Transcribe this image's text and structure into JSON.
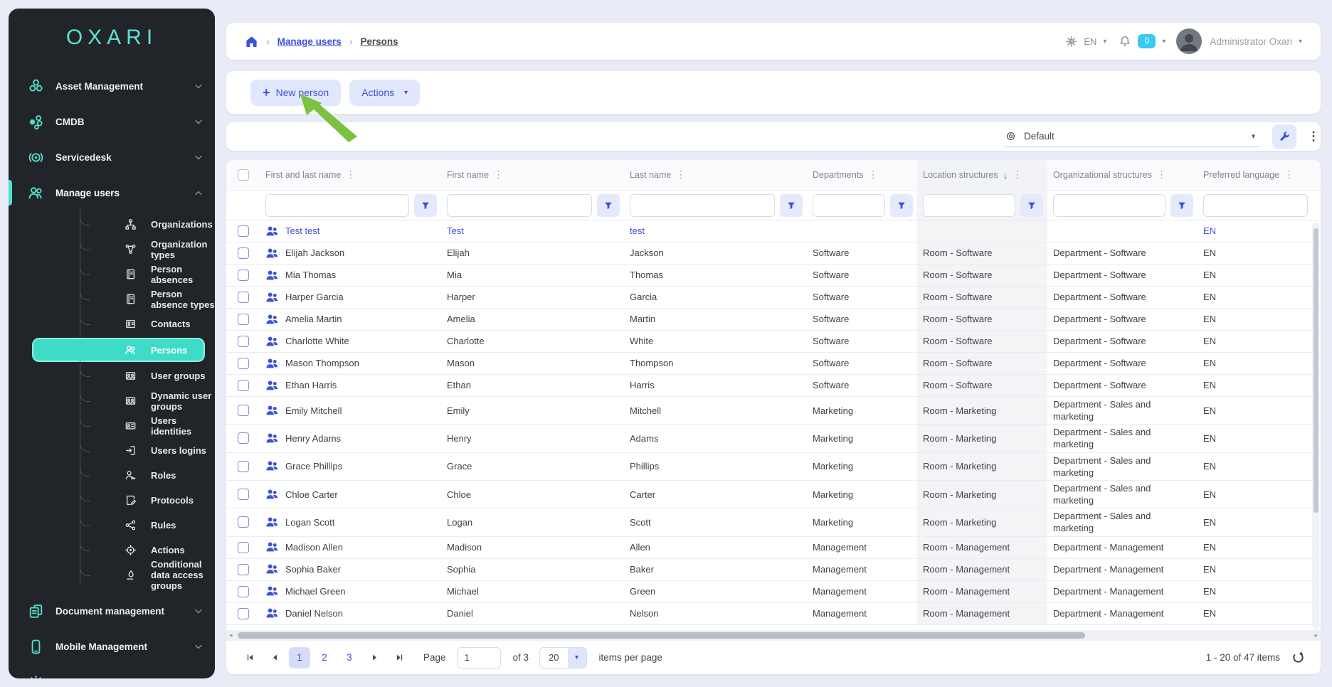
{
  "app": {
    "logo": "OXARI"
  },
  "colors": {
    "accent_teal": "#54e0cf",
    "accent_blue": "#3d50d8",
    "badge_cyan": "#3cc9f1",
    "sidebar_bg": "#212529"
  },
  "sidebar": {
    "items": [
      {
        "id": "asset-management",
        "label": "Asset Management",
        "icon": "hexagons",
        "chevron": "down"
      },
      {
        "id": "cmdb",
        "label": "CMDB",
        "icon": "cmdb",
        "chevron": "down"
      },
      {
        "id": "servicedesk",
        "label": "Servicedesk",
        "icon": "servicedesk",
        "chevron": "down"
      },
      {
        "id": "manage-users",
        "label": "Manage users",
        "icon": "people",
        "chevron": "up",
        "active": true,
        "children": [
          {
            "id": "organizations",
            "label": "Organizations",
            "icon": "sitemap"
          },
          {
            "id": "organization-types",
            "label": "Organization types",
            "icon": "nodes"
          },
          {
            "id": "person-absences",
            "label": "Person absences",
            "icon": "notebook"
          },
          {
            "id": "person-absence-types",
            "label": "Person absence types",
            "icon": "notebook"
          },
          {
            "id": "contacts",
            "label": "Contacts",
            "icon": "contact-card"
          },
          {
            "id": "persons",
            "label": "Persons",
            "icon": "people-sm",
            "selected": true
          },
          {
            "id": "user-groups",
            "label": "User groups",
            "icon": "group"
          },
          {
            "id": "dynamic-user-groups",
            "label": "Dynamic user groups",
            "icon": "group"
          },
          {
            "id": "users-identities",
            "label": "Users identities",
            "icon": "id-card"
          },
          {
            "id": "users-logins",
            "label": "Users logins",
            "icon": "login"
          },
          {
            "id": "roles",
            "label": "Roles",
            "icon": "person-key"
          },
          {
            "id": "protocols",
            "label": "Protocols",
            "icon": "document-pen"
          },
          {
            "id": "rules",
            "label": "Rules",
            "icon": "share-nodes"
          },
          {
            "id": "actions",
            "label": "Actions",
            "icon": "target"
          },
          {
            "id": "conditional-data-access-groups",
            "label": "Conditional data access groups",
            "icon": "hand"
          }
        ]
      },
      {
        "id": "document-management",
        "label": "Document management",
        "icon": "documents",
        "chevron": "down"
      },
      {
        "id": "mobile-management",
        "label": "Mobile Management",
        "icon": "phone",
        "chevron": "down"
      },
      {
        "id": "settings",
        "label": "Settings",
        "icon": "gear",
        "chevron": "down"
      }
    ]
  },
  "breadcrumb": {
    "items": [
      {
        "label": "Manage users"
      },
      {
        "label": "Persons"
      }
    ]
  },
  "header_right": {
    "language": "EN",
    "notification_count": "0",
    "user_name": "Administrator Oxari"
  },
  "toolbar": {
    "new_person_label": "New person",
    "actions_label": "Actions"
  },
  "view_bar": {
    "selected_view": "Default"
  },
  "table": {
    "columns": [
      {
        "label": "First and last name",
        "filter_button": true
      },
      {
        "label": "First name",
        "filter_button": true
      },
      {
        "label": "Last name",
        "filter_button": true
      },
      {
        "label": "Departments",
        "filter_button": true
      },
      {
        "label": "Location structures",
        "filter_button": true,
        "sorted": "desc"
      },
      {
        "label": "Organizational structures",
        "filter_button": true
      },
      {
        "label": "Preferred language",
        "filter_button": false
      }
    ],
    "filter_values": [
      "",
      "",
      "",
      "",
      "",
      "",
      ""
    ],
    "rows": [
      {
        "name": "Test test",
        "first": "Test",
        "last": "test",
        "dept": "",
        "loc": "",
        "org": "",
        "lang": "EN",
        "highlight": true
      },
      {
        "name": "Elijah Jackson",
        "first": "Elijah",
        "last": "Jackson",
        "dept": "Software",
        "loc": "Room - Software",
        "org": "Department - Software",
        "lang": "EN"
      },
      {
        "name": "Mia Thomas",
        "first": "Mia",
        "last": "Thomas",
        "dept": "Software",
        "loc": "Room - Software",
        "org": "Department - Software",
        "lang": "EN"
      },
      {
        "name": "Harper Garcia",
        "first": "Harper",
        "last": "Garcia",
        "dept": "Software",
        "loc": "Room - Software",
        "org": "Department - Software",
        "lang": "EN"
      },
      {
        "name": "Amelia Martin",
        "first": "Amelia",
        "last": "Martin",
        "dept": "Software",
        "loc": "Room - Software",
        "org": "Department - Software",
        "lang": "EN"
      },
      {
        "name": "Charlotte White",
        "first": "Charlotte",
        "last": "White",
        "dept": "Software",
        "loc": "Room - Software",
        "org": "Department - Software",
        "lang": "EN"
      },
      {
        "name": "Mason Thompson",
        "first": "Mason",
        "last": "Thompson",
        "dept": "Software",
        "loc": "Room - Software",
        "org": "Department - Software",
        "lang": "EN"
      },
      {
        "name": "Ethan Harris",
        "first": "Ethan",
        "last": "Harris",
        "dept": "Software",
        "loc": "Room - Software",
        "org": "Department - Software",
        "lang": "EN"
      },
      {
        "name": "Emily Mitchell",
        "first": "Emily",
        "last": "Mitchell",
        "dept": "Marketing",
        "loc": "Room - Marketing",
        "org": "Department - Sales and marketing",
        "lang": "EN"
      },
      {
        "name": "Henry Adams",
        "first": "Henry",
        "last": "Adams",
        "dept": "Marketing",
        "loc": "Room - Marketing",
        "org": "Department - Sales and marketing",
        "lang": "EN"
      },
      {
        "name": "Grace Phillips",
        "first": "Grace",
        "last": "Phillips",
        "dept": "Marketing",
        "loc": "Room - Marketing",
        "org": "Department - Sales and marketing",
        "lang": "EN"
      },
      {
        "name": "Chloe Carter",
        "first": "Chloe",
        "last": "Carter",
        "dept": "Marketing",
        "loc": "Room - Marketing",
        "org": "Department - Sales and marketing",
        "lang": "EN"
      },
      {
        "name": "Logan Scott",
        "first": "Logan",
        "last": "Scott",
        "dept": "Marketing",
        "loc": "Room - Marketing",
        "org": "Department - Sales and marketing",
        "lang": "EN"
      },
      {
        "name": "Madison Allen",
        "first": "Madison",
        "last": "Allen",
        "dept": "Management",
        "loc": "Room - Management",
        "org": "Department - Management",
        "lang": "EN"
      },
      {
        "name": "Sophia Baker",
        "first": "Sophia",
        "last": "Baker",
        "dept": "Management",
        "loc": "Room - Management",
        "org": "Department - Management",
        "lang": "EN"
      },
      {
        "name": "Michael Green",
        "first": "Michael",
        "last": "Green",
        "dept": "Management",
        "loc": "Room - Management",
        "org": "Department - Management",
        "lang": "EN"
      },
      {
        "name": "Daniel Nelson",
        "first": "Daniel",
        "last": "Nelson",
        "dept": "Management",
        "loc": "Room - Management",
        "org": "Department - Management",
        "lang": "EN"
      }
    ]
  },
  "pagination": {
    "pages": [
      "1",
      "2",
      "3"
    ],
    "current_page": "1",
    "page_label": "Page",
    "page_input_value": "1",
    "of_label": "of 3",
    "page_size_value": "20",
    "items_per_page_label": "items per page",
    "range_label": "1 - 20 of 47 items"
  }
}
